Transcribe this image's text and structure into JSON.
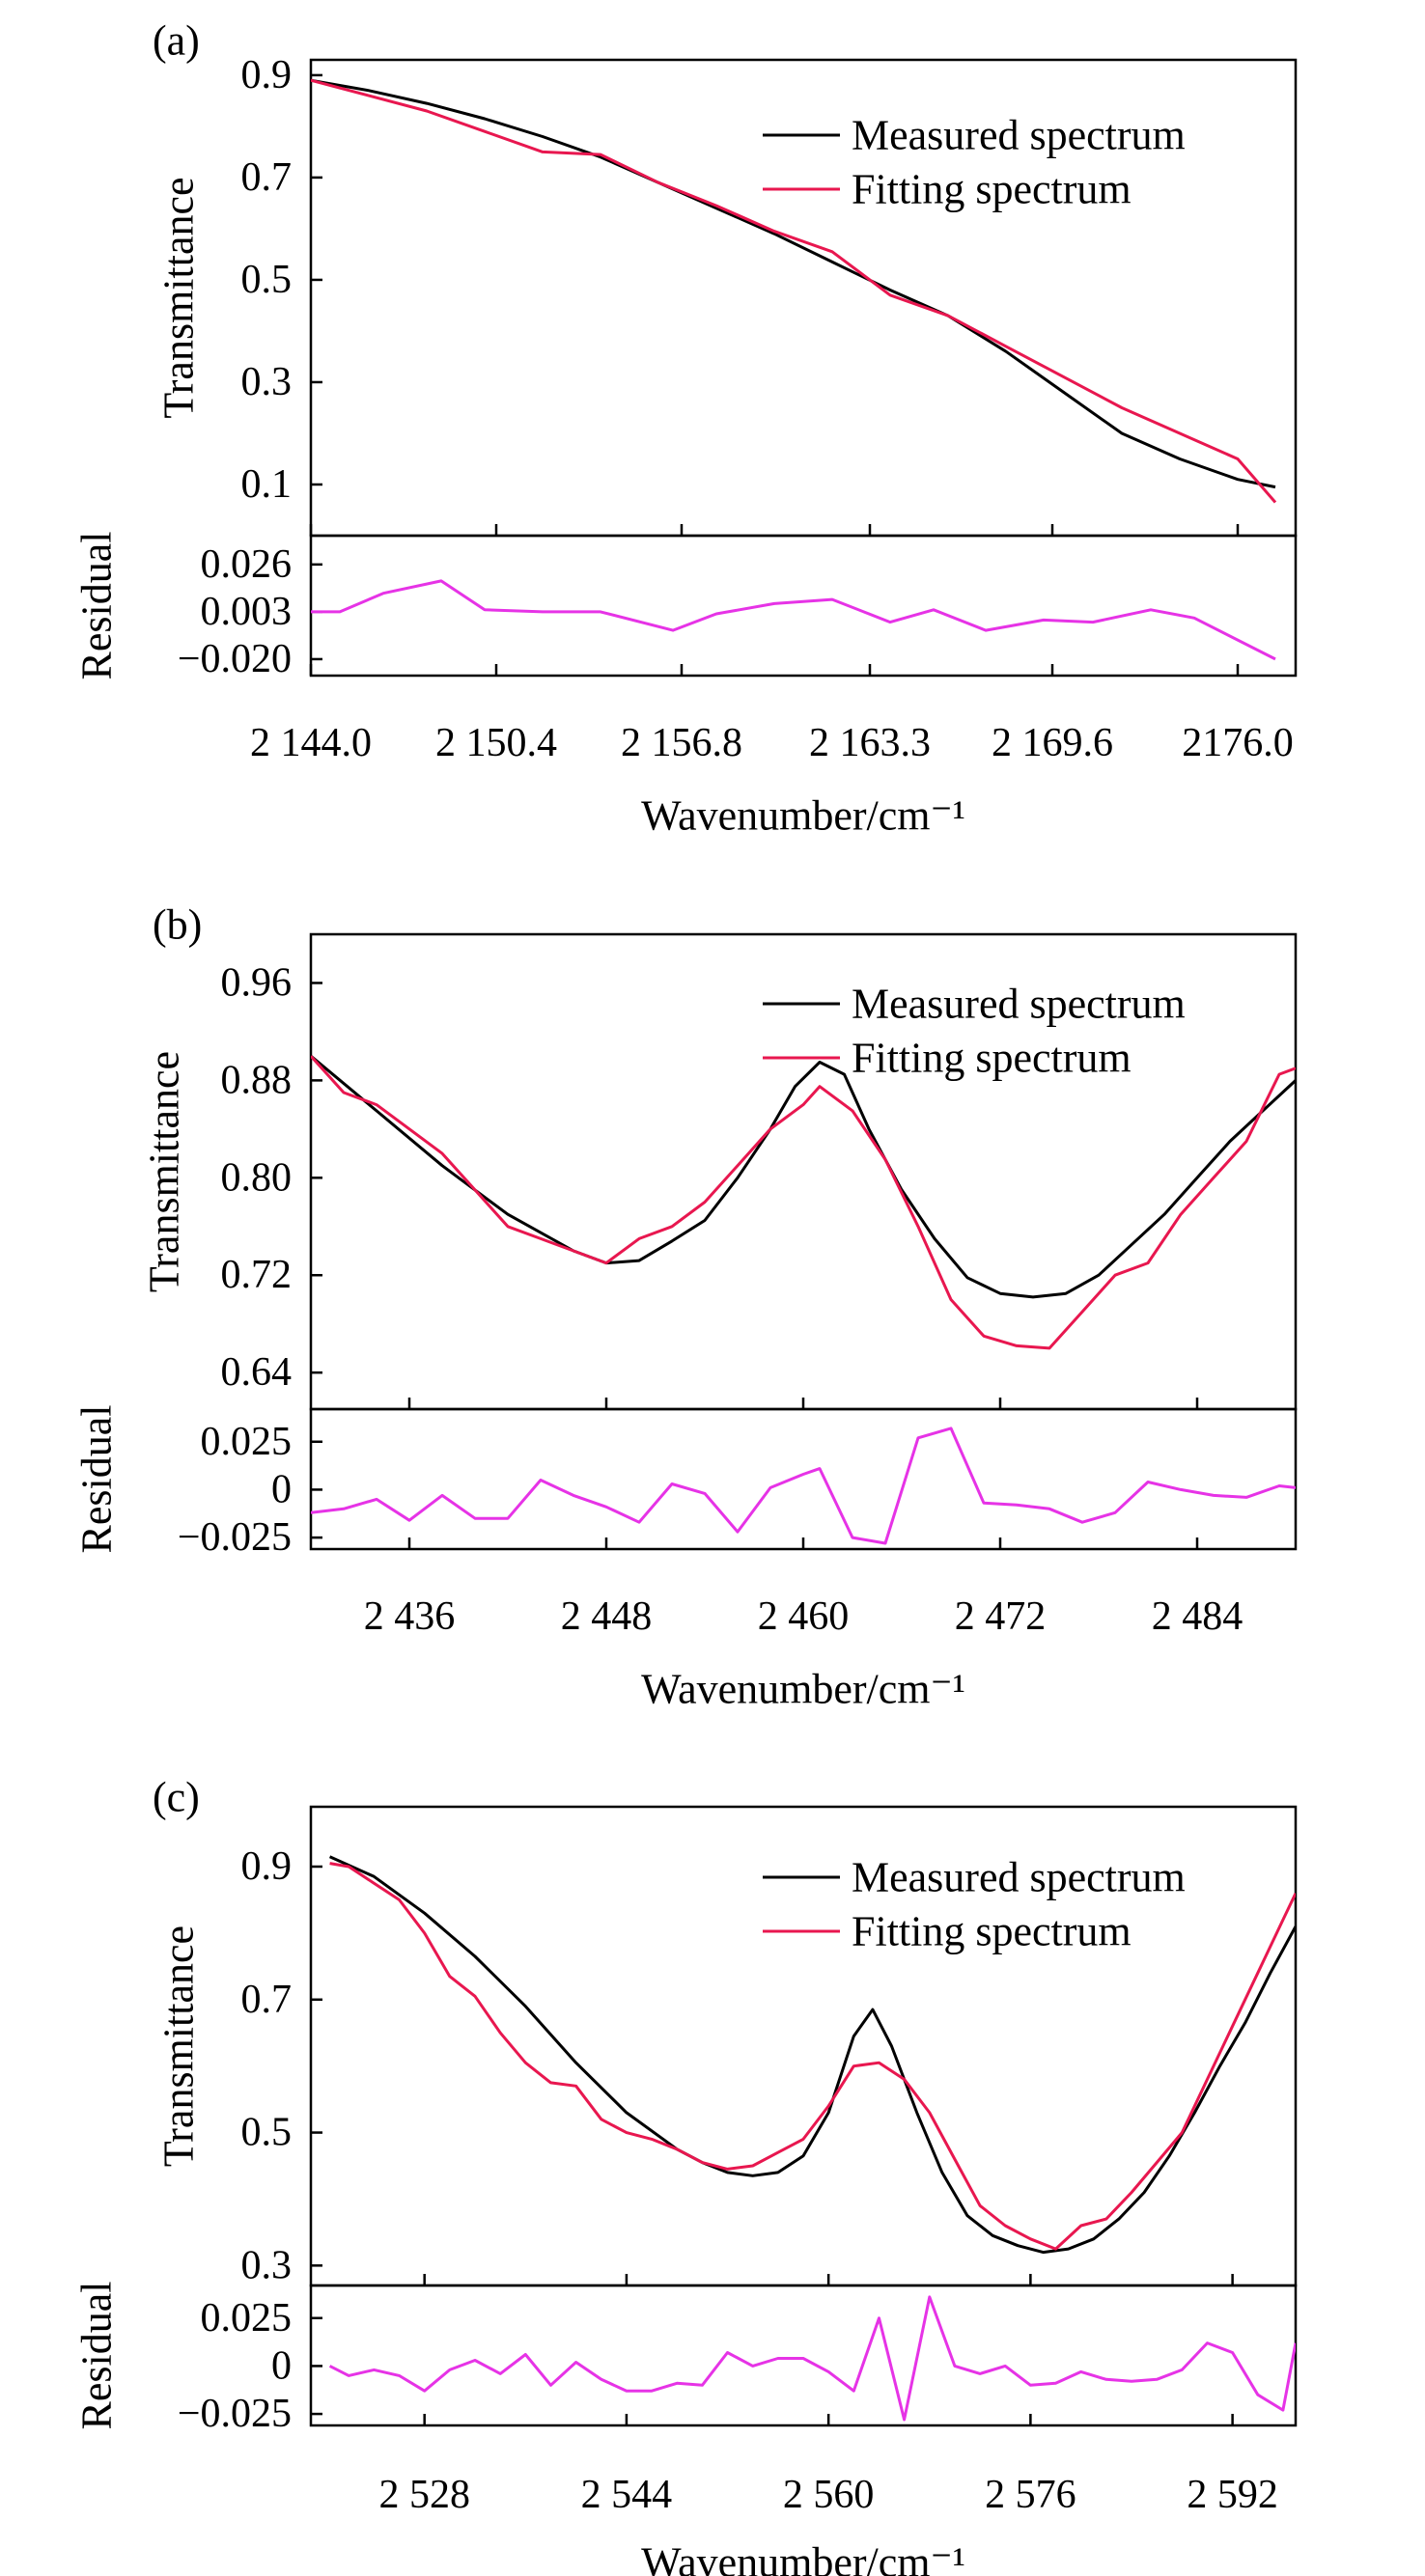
{
  "colors": {
    "measured": "#000000",
    "fitting": "#e8174f",
    "residual": "#e633e6",
    "axes": "#000000",
    "background": "#ffffff"
  },
  "chart_data": [
    {
      "panel_label": "(a)",
      "type": "line",
      "xlabel": "Wavenumber/cm⁻¹",
      "ylabel": "Transmittance",
      "residual_ylabel": "Residual",
      "xlim": [
        2144.0,
        2178.0
      ],
      "ylim": [
        0.0,
        0.93
      ],
      "residual_ylim": [
        -0.028,
        0.04
      ],
      "xticks": [
        2144.0,
        2150.4,
        2156.8,
        2163.3,
        2169.6,
        2176.0
      ],
      "xtick_labels": [
        "2 144.0",
        "2 150.4",
        "2 156.8",
        "2 163.3",
        "2 169.6",
        "2176.0"
      ],
      "yticks": [
        0.1,
        0.3,
        0.5,
        0.7,
        0.9
      ],
      "ytick_labels": [
        "0.1",
        "0.3",
        "0.5",
        "0.7",
        "0.9"
      ],
      "residual_yticks": [
        -0.02,
        0.003,
        0.026
      ],
      "residual_ytick_labels": [
        "−0.020",
        "0.003",
        "0.026"
      ],
      "legend": {
        "position": "top-right",
        "entries": [
          "Measured spectrum",
          "Fitting spectrum"
        ]
      },
      "series": [
        {
          "name": "Measured spectrum",
          "x": [
            2144.0,
            2146.0,
            2148.0,
            2150.0,
            2152.0,
            2154.0,
            2156.0,
            2158.0,
            2160.0,
            2162.0,
            2164.0,
            2166.0,
            2168.0,
            2170.0,
            2172.0,
            2174.0,
            2176.0,
            2177.3
          ],
          "values": [
            0.89,
            0.87,
            0.845,
            0.815,
            0.78,
            0.74,
            0.69,
            0.64,
            0.59,
            0.535,
            0.48,
            0.43,
            0.36,
            0.28,
            0.2,
            0.15,
            0.11,
            0.095
          ]
        },
        {
          "name": "Fitting spectrum",
          "x": [
            2144.0,
            2146.0,
            2148.0,
            2150.0,
            2152.0,
            2154.0,
            2156.0,
            2158.0,
            2160.0,
            2162.0,
            2164.0,
            2166.0,
            2168.0,
            2170.0,
            2172.0,
            2174.0,
            2176.0,
            2177.3
          ],
          "values": [
            0.89,
            0.86,
            0.83,
            0.79,
            0.75,
            0.745,
            0.69,
            0.645,
            0.595,
            0.555,
            0.47,
            0.43,
            0.37,
            0.31,
            0.25,
            0.2,
            0.15,
            0.065
          ]
        }
      ],
      "residual": {
        "x": [
          2144.0,
          2145.0,
          2146.5,
          2148.5,
          2150.0,
          2152.0,
          2154.0,
          2156.5,
          2158.0,
          2160.0,
          2162.0,
          2164.0,
          2165.5,
          2167.3,
          2169.3,
          2171.0,
          2173.0,
          2174.5,
          2177.3
        ],
        "values": [
          0.003,
          0.003,
          0.012,
          0.018,
          0.004,
          0.003,
          0.003,
          -0.006,
          0.002,
          0.007,
          0.009,
          -0.002,
          0.004,
          -0.006,
          -0.001,
          -0.002,
          0.004,
          0.0,
          -0.02
        ]
      }
    },
    {
      "panel_label": "(b)",
      "type": "line",
      "xlabel": "Wavenumber/cm⁻¹",
      "ylabel": "Transmittance",
      "residual_ylabel": "Residual",
      "xlim": [
        2430.0,
        2490.0
      ],
      "ylim": [
        0.61,
        1.0
      ],
      "residual_ylim": [
        -0.031,
        0.042
      ],
      "xticks": [
        2436,
        2448,
        2460,
        2472,
        2484
      ],
      "xtick_labels": [
        "2 436",
        "2 448",
        "2 460",
        "2 472",
        "2 484"
      ],
      "yticks": [
        0.64,
        0.72,
        0.8,
        0.88,
        0.96
      ],
      "ytick_labels": [
        "0.64",
        "0.72",
        "0.80",
        "0.88",
        "0.96"
      ],
      "residual_yticks": [
        -0.025,
        0,
        0.025
      ],
      "residual_ytick_labels": [
        "−0.025",
        "0",
        "0.025"
      ],
      "legend": {
        "position": "top-right",
        "entries": [
          "Measured spectrum",
          "Fitting spectrum"
        ]
      },
      "series": [
        {
          "name": "Measured spectrum",
          "x": [
            2430,
            2434,
            2438,
            2442,
            2446,
            2448,
            2450,
            2452,
            2454,
            2456,
            2458,
            2459.5,
            2461,
            2462.5,
            2464,
            2466,
            2468,
            2470,
            2472,
            2474,
            2476,
            2478,
            2480,
            2482,
            2484,
            2486,
            2488,
            2490
          ],
          "values": [
            0.9,
            0.855,
            0.81,
            0.77,
            0.74,
            0.73,
            0.732,
            0.748,
            0.765,
            0.8,
            0.84,
            0.875,
            0.895,
            0.885,
            0.84,
            0.79,
            0.75,
            0.718,
            0.705,
            0.702,
            0.705,
            0.72,
            0.745,
            0.77,
            0.8,
            0.83,
            0.855,
            0.88
          ]
        },
        {
          "name": "Fitting spectrum",
          "x": [
            2430,
            2432,
            2434,
            2436,
            2438,
            2440,
            2442,
            2444,
            2446,
            2448,
            2450,
            2452,
            2454,
            2456,
            2458,
            2460,
            2461,
            2463,
            2465,
            2467,
            2469,
            2471,
            2473,
            2475,
            2477,
            2479,
            2481,
            2483,
            2485,
            2487,
            2489,
            2490
          ],
          "values": [
            0.9,
            0.87,
            0.86,
            0.84,
            0.82,
            0.79,
            0.76,
            0.75,
            0.74,
            0.73,
            0.75,
            0.76,
            0.78,
            0.81,
            0.84,
            0.86,
            0.875,
            0.855,
            0.815,
            0.76,
            0.7,
            0.67,
            0.662,
            0.66,
            0.69,
            0.72,
            0.73,
            0.77,
            0.8,
            0.83,
            0.885,
            0.89
          ]
        }
      ],
      "residual": {
        "x": [
          2430,
          2432,
          2434,
          2436,
          2438,
          2440,
          2442,
          2444,
          2446,
          2448,
          2450,
          2452,
          2454,
          2456,
          2458,
          2460,
          2461,
          2463,
          2465,
          2467,
          2469,
          2471,
          2473,
          2475,
          2477,
          2479,
          2481,
          2483,
          2485,
          2487,
          2489,
          2490
        ],
        "values": [
          -0.012,
          -0.01,
          -0.005,
          -0.016,
          -0.003,
          -0.015,
          -0.015,
          0.005,
          -0.003,
          -0.009,
          -0.017,
          0.003,
          -0.002,
          -0.022,
          0.001,
          0.008,
          0.011,
          -0.025,
          -0.028,
          0.027,
          0.032,
          -0.007,
          -0.008,
          -0.01,
          -0.017,
          -0.012,
          0.004,
          0.0,
          -0.003,
          -0.004,
          0.002,
          0.001
        ]
      }
    },
    {
      "panel_label": "(c)",
      "type": "line",
      "xlabel": "Wavenumber/cm⁻¹",
      "ylabel": "Transmittance",
      "residual_ylabel": "Residual",
      "xlim": [
        2519.0,
        2597.0
      ],
      "ylim": [
        0.27,
        0.99
      ],
      "residual_ylim": [
        -0.031,
        0.042
      ],
      "xticks": [
        2528,
        2544,
        2560,
        2576,
        2592
      ],
      "xtick_labels": [
        "2 528",
        "2 544",
        "2 560",
        "2 576",
        "2 592"
      ],
      "yticks": [
        0.3,
        0.5,
        0.7,
        0.9
      ],
      "ytick_labels": [
        "0.3",
        "0.5",
        "0.7",
        "0.9"
      ],
      "residual_yticks": [
        -0.025,
        0,
        0.025
      ],
      "residual_ytick_labels": [
        "−0.025",
        "0",
        "0.025"
      ],
      "legend": {
        "position": "top-right",
        "entries": [
          "Measured spectrum",
          "Fitting spectrum"
        ]
      },
      "series": [
        {
          "name": "Measured spectrum",
          "x": [
            2520.5,
            2524,
            2528,
            2532,
            2536,
            2540,
            2544,
            2548,
            2550,
            2552,
            2554,
            2556,
            2558,
            2560,
            2562,
            2563.5,
            2565,
            2567,
            2569,
            2571,
            2573,
            2575,
            2577,
            2579,
            2581,
            2583,
            2585,
            2587,
            2589,
            2591,
            2593,
            2595,
            2597
          ],
          "values": [
            0.915,
            0.885,
            0.83,
            0.765,
            0.69,
            0.605,
            0.53,
            0.475,
            0.455,
            0.44,
            0.435,
            0.44,
            0.465,
            0.53,
            0.645,
            0.685,
            0.63,
            0.53,
            0.44,
            0.375,
            0.345,
            0.33,
            0.32,
            0.325,
            0.34,
            0.37,
            0.41,
            0.465,
            0.53,
            0.6,
            0.665,
            0.74,
            0.81
          ]
        },
        {
          "name": "Fitting spectrum",
          "x": [
            2520.5,
            2522,
            2524,
            2526,
            2528,
            2530,
            2532,
            2534,
            2536,
            2538,
            2540,
            2542,
            2544,
            2546,
            2548,
            2550,
            2552,
            2554,
            2556,
            2558,
            2560,
            2562,
            2564,
            2566,
            2568,
            2570,
            2572,
            2574,
            2576,
            2578,
            2580,
            2582,
            2584,
            2586,
            2588,
            2590,
            2592,
            2594,
            2596,
            2597
          ],
          "values": [
            0.905,
            0.9,
            0.875,
            0.85,
            0.8,
            0.735,
            0.705,
            0.65,
            0.605,
            0.575,
            0.57,
            0.52,
            0.5,
            0.49,
            0.475,
            0.455,
            0.445,
            0.45,
            0.47,
            0.49,
            0.54,
            0.6,
            0.605,
            0.58,
            0.53,
            0.46,
            0.39,
            0.36,
            0.34,
            0.325,
            0.36,
            0.37,
            0.41,
            0.455,
            0.5,
            0.58,
            0.66,
            0.74,
            0.82,
            0.86
          ]
        }
      ],
      "residual": {
        "x": [
          2520.5,
          2522,
          2524,
          2526,
          2528,
          2530,
          2532,
          2534,
          2536,
          2538,
          2540,
          2542,
          2544,
          2546,
          2548,
          2550,
          2552,
          2554,
          2556,
          2558,
          2560,
          2562,
          2564,
          2566,
          2568,
          2570,
          2572,
          2574,
          2576,
          2578,
          2580,
          2582,
          2584,
          2586,
          2588,
          2590,
          2592,
          2594,
          2596,
          2597
        ],
        "values": [
          0.0,
          -0.005,
          -0.002,
          -0.005,
          -0.013,
          -0.002,
          0.003,
          -0.004,
          0.006,
          -0.01,
          0.002,
          -0.007,
          -0.013,
          -0.013,
          -0.009,
          -0.01,
          0.007,
          0.0,
          0.004,
          0.004,
          -0.003,
          -0.013,
          0.025,
          -0.028,
          0.036,
          0.0,
          -0.004,
          0.0,
          -0.01,
          -0.009,
          -0.003,
          -0.007,
          -0.008,
          -0.007,
          -0.002,
          0.012,
          0.007,
          -0.015,
          -0.023,
          0.012
        ]
      }
    }
  ]
}
